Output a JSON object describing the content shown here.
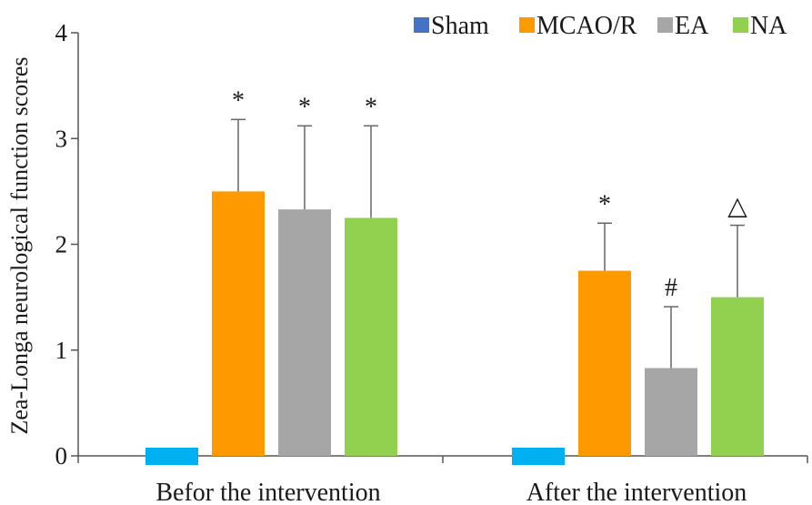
{
  "chart_data": {
    "type": "bar",
    "ylabel": "Zea-Longa neurological function scores",
    "ylim": [
      0,
      4
    ],
    "yticks": [
      0,
      1,
      2,
      3,
      4
    ],
    "categories": [
      "Befor the intervention",
      "After the intervention"
    ],
    "legend_position": "top-right",
    "grid": false,
    "series": [
      {
        "name": "Sham",
        "legend_color": "#4472c4",
        "color": "#00b0f0",
        "values": [
          0,
          0
        ],
        "errors": [
          0,
          0
        ],
        "annotations": [
          "",
          ""
        ]
      },
      {
        "name": "MCAO/R",
        "legend_color": "#ff9900",
        "color": "#ff9900",
        "values": [
          2.5,
          1.75
        ],
        "errors": [
          0.68,
          0.45
        ],
        "annotations": [
          "*",
          "*"
        ]
      },
      {
        "name": "EA",
        "legend_color": "#a6a6a6",
        "color": "#a6a6a6",
        "values": [
          2.33,
          0.83
        ],
        "errors": [
          0.79,
          0.58
        ],
        "annotations": [
          "*",
          "#"
        ]
      },
      {
        "name": "NA",
        "legend_color": "#92d050",
        "color": "#92d050",
        "values": [
          2.25,
          1.5
        ],
        "errors": [
          0.87,
          0.68
        ],
        "annotations": [
          "*",
          "△"
        ]
      }
    ]
  }
}
